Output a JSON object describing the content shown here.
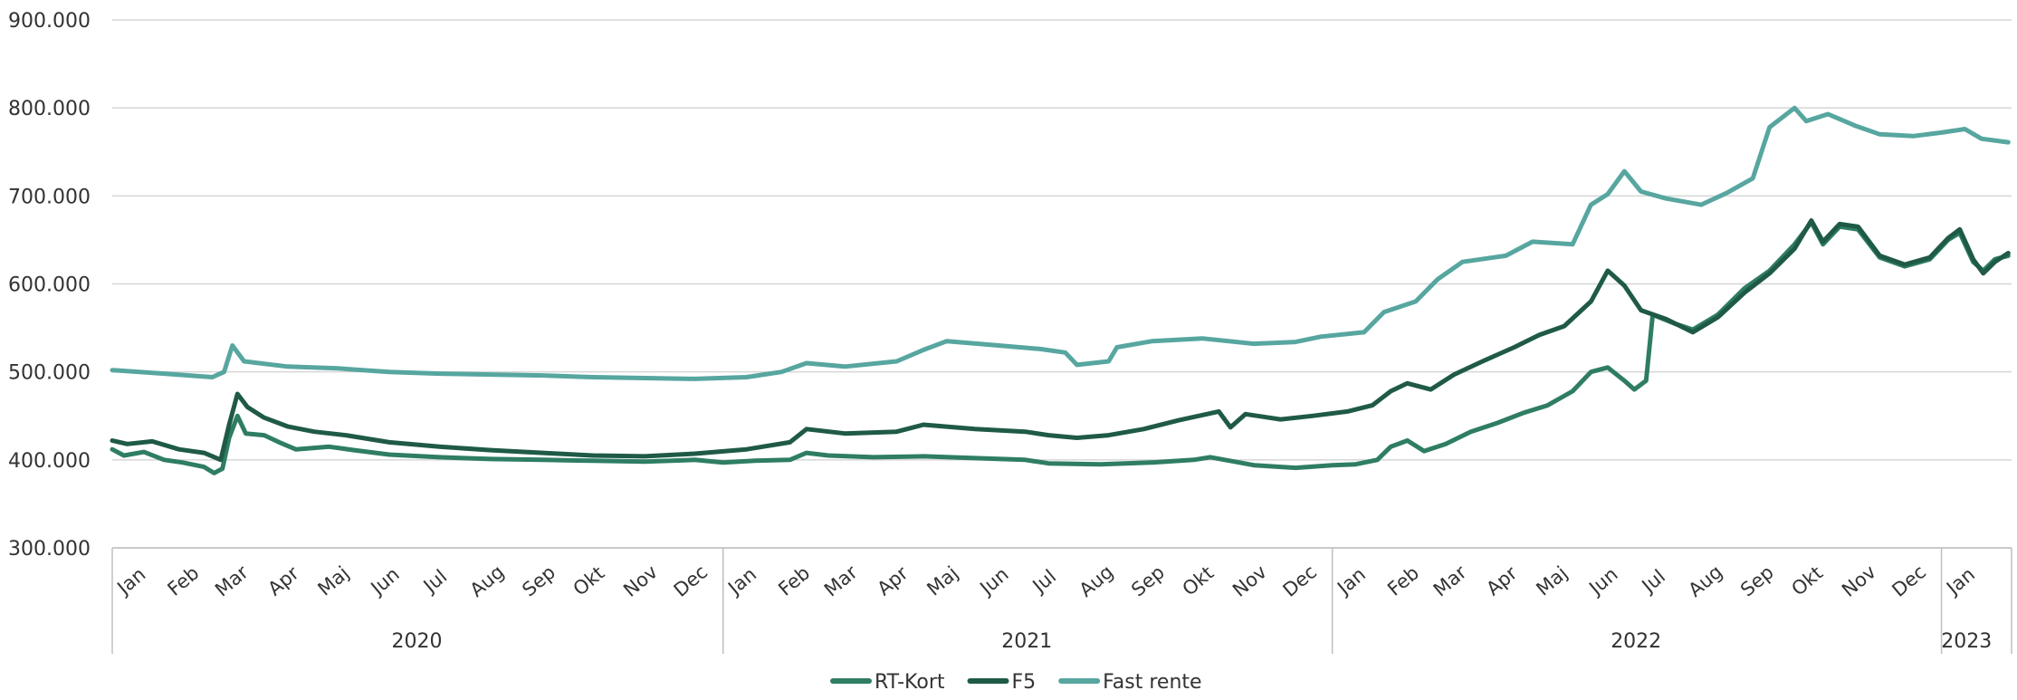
{
  "chart_data": {
    "type": "line",
    "title": "",
    "xlabel": "",
    "ylabel": "",
    "ylim": [
      300000,
      900000
    ],
    "yticks": [
      "300.000",
      "400.000",
      "500.000",
      "600.000",
      "700.000",
      "800.000",
      "900.000"
    ],
    "grid": true,
    "legend_position": "bottom",
    "x_tick_labels": [
      {
        "label": "Jan",
        "date": "2020-01-15"
      },
      {
        "label": "Feb",
        "date": "2020-02-15"
      },
      {
        "label": "Mar",
        "date": "2020-03-15"
      },
      {
        "label": "Apr",
        "date": "2020-04-15"
      },
      {
        "label": "Maj",
        "date": "2020-05-15"
      },
      {
        "label": "Jun",
        "date": "2020-06-15"
      },
      {
        "label": "Jul",
        "date": "2020-07-15"
      },
      {
        "label": "Aug",
        "date": "2020-08-15"
      },
      {
        "label": "Sep",
        "date": "2020-09-15"
      },
      {
        "label": "Okt",
        "date": "2020-10-15"
      },
      {
        "label": "Nov",
        "date": "2020-11-15"
      },
      {
        "label": "Dec",
        "date": "2020-12-15"
      },
      {
        "label": "Jan",
        "date": "2021-01-15"
      },
      {
        "label": "Feb",
        "date": "2021-02-15"
      },
      {
        "label": "Mar",
        "date": "2021-03-15"
      },
      {
        "label": "Apr",
        "date": "2021-04-15"
      },
      {
        "label": "Maj",
        "date": "2021-05-15"
      },
      {
        "label": "Jun",
        "date": "2021-06-15"
      },
      {
        "label": "Jul",
        "date": "2021-07-15"
      },
      {
        "label": "Aug",
        "date": "2021-08-15"
      },
      {
        "label": "Sep",
        "date": "2021-09-15"
      },
      {
        "label": "Okt",
        "date": "2021-10-15"
      },
      {
        "label": "Nov",
        "date": "2021-11-15"
      },
      {
        "label": "Dec",
        "date": "2021-12-15"
      },
      {
        "label": "Jan",
        "date": "2022-01-15"
      },
      {
        "label": "Feb",
        "date": "2022-02-15"
      },
      {
        "label": "Mar",
        "date": "2022-03-15"
      },
      {
        "label": "Apr",
        "date": "2022-04-15"
      },
      {
        "label": "Maj",
        "date": "2022-05-15"
      },
      {
        "label": "Jun",
        "date": "2022-06-15"
      },
      {
        "label": "Jul",
        "date": "2022-07-15"
      },
      {
        "label": "Aug",
        "date": "2022-08-15"
      },
      {
        "label": "Sep",
        "date": "2022-09-15"
      },
      {
        "label": "Okt",
        "date": "2022-10-15"
      },
      {
        "label": "Nov",
        "date": "2022-11-15"
      },
      {
        "label": "Dec",
        "date": "2022-12-15"
      },
      {
        "label": "Jan",
        "date": "2023-01-15"
      }
    ],
    "year_groups": [
      {
        "label": "2020",
        "start": "2020-01-01",
        "end": "2020-12-31"
      },
      {
        "label": "2021",
        "start": "2021-01-01",
        "end": "2021-12-31"
      },
      {
        "label": "2022",
        "start": "2022-01-01",
        "end": "2022-12-31"
      },
      {
        "label": "2023",
        "start": "2023-01-01",
        "end": "2023-01-31"
      }
    ],
    "series": [
      {
        "name": "RT-Kort",
        "color": "#2e7d64",
        "points": [
          [
            "2020-01-01",
            412000
          ],
          [
            "2020-01-08",
            405000
          ],
          [
            "2020-01-20",
            409000
          ],
          [
            "2020-02-01",
            400000
          ],
          [
            "2020-02-12",
            397000
          ],
          [
            "2020-02-25",
            392000
          ],
          [
            "2020-03-02",
            385000
          ],
          [
            "2020-03-07",
            390000
          ],
          [
            "2020-03-11",
            425000
          ],
          [
            "2020-03-16",
            450000
          ],
          [
            "2020-03-21",
            430000
          ],
          [
            "2020-04-01",
            428000
          ],
          [
            "2020-04-10",
            420000
          ],
          [
            "2020-04-20",
            412000
          ],
          [
            "2020-05-10",
            415000
          ],
          [
            "2020-05-25",
            411000
          ],
          [
            "2020-06-15",
            406000
          ],
          [
            "2020-07-15",
            403000
          ],
          [
            "2020-08-15",
            401000
          ],
          [
            "2020-09-15",
            400000
          ],
          [
            "2020-10-15",
            399000
          ],
          [
            "2020-11-15",
            398000
          ],
          [
            "2020-12-15",
            400000
          ],
          [
            "2021-01-01",
            397000
          ],
          [
            "2021-01-20",
            399000
          ],
          [
            "2021-02-10",
            400000
          ],
          [
            "2021-02-20",
            408000
          ],
          [
            "2021-03-05",
            405000
          ],
          [
            "2021-04-01",
            403000
          ],
          [
            "2021-05-01",
            404000
          ],
          [
            "2021-06-01",
            402000
          ],
          [
            "2021-07-01",
            400000
          ],
          [
            "2021-07-15",
            396000
          ],
          [
            "2021-08-15",
            395000
          ],
          [
            "2021-09-15",
            397000
          ],
          [
            "2021-10-10",
            400000
          ],
          [
            "2021-10-20",
            403000
          ],
          [
            "2021-11-15",
            394000
          ],
          [
            "2021-12-10",
            391000
          ],
          [
            "2022-01-01",
            394000
          ],
          [
            "2022-01-15",
            395000
          ],
          [
            "2022-01-28",
            400000
          ],
          [
            "2022-02-05",
            415000
          ],
          [
            "2022-02-15",
            422000
          ],
          [
            "2022-02-25",
            410000
          ],
          [
            "2022-03-10",
            418000
          ],
          [
            "2022-03-25",
            432000
          ],
          [
            "2022-04-10",
            442000
          ],
          [
            "2022-04-25",
            453000
          ],
          [
            "2022-05-10",
            462000
          ],
          [
            "2022-05-25",
            478000
          ],
          [
            "2022-06-05",
            500000
          ],
          [
            "2022-06-15",
            505000
          ],
          [
            "2022-06-25",
            490000
          ],
          [
            "2022-07-01",
            480000
          ],
          [
            "2022-07-08",
            490000
          ],
          [
            "2022-07-12",
            565000
          ],
          [
            "2022-07-25",
            555000
          ],
          [
            "2022-08-05",
            548000
          ],
          [
            "2022-08-20",
            565000
          ],
          [
            "2022-09-05",
            595000
          ],
          [
            "2022-09-20",
            615000
          ],
          [
            "2022-10-05",
            645000
          ],
          [
            "2022-10-15",
            670000
          ],
          [
            "2022-10-22",
            645000
          ],
          [
            "2022-11-01",
            665000
          ],
          [
            "2022-11-12",
            662000
          ],
          [
            "2022-11-25",
            630000
          ],
          [
            "2022-12-10",
            620000
          ],
          [
            "2022-12-25",
            628000
          ],
          [
            "2023-01-05",
            650000
          ],
          [
            "2023-01-12",
            658000
          ],
          [
            "2023-01-20",
            625000
          ],
          [
            "2023-01-26",
            615000
          ],
          [
            "2023-02-02",
            628000
          ],
          [
            "2023-02-10",
            632000
          ]
        ]
      },
      {
        "name": "F5",
        "color": "#1f5a47",
        "points": [
          [
            "2020-01-01",
            422000
          ],
          [
            "2020-01-10",
            418000
          ],
          [
            "2020-01-25",
            421000
          ],
          [
            "2020-02-10",
            412000
          ],
          [
            "2020-02-25",
            408000
          ],
          [
            "2020-03-06",
            400000
          ],
          [
            "2020-03-11",
            440000
          ],
          [
            "2020-03-16",
            475000
          ],
          [
            "2020-03-22",
            460000
          ],
          [
            "2020-04-01",
            448000
          ],
          [
            "2020-04-15",
            438000
          ],
          [
            "2020-05-01",
            432000
          ],
          [
            "2020-05-20",
            428000
          ],
          [
            "2020-06-15",
            420000
          ],
          [
            "2020-07-15",
            415000
          ],
          [
            "2020-08-15",
            411000
          ],
          [
            "2020-09-15",
            408000
          ],
          [
            "2020-10-15",
            405000
          ],
          [
            "2020-11-15",
            404000
          ],
          [
            "2020-12-15",
            407000
          ],
          [
            "2021-01-15",
            412000
          ],
          [
            "2021-02-10",
            420000
          ],
          [
            "2021-02-20",
            435000
          ],
          [
            "2021-03-15",
            430000
          ],
          [
            "2021-04-15",
            432000
          ],
          [
            "2021-05-01",
            440000
          ],
          [
            "2021-06-01",
            435000
          ],
          [
            "2021-07-01",
            432000
          ],
          [
            "2021-07-15",
            428000
          ],
          [
            "2021-08-01",
            425000
          ],
          [
            "2021-08-20",
            428000
          ],
          [
            "2021-09-10",
            435000
          ],
          [
            "2021-10-01",
            445000
          ],
          [
            "2021-10-25",
            455000
          ],
          [
            "2021-11-01",
            437000
          ],
          [
            "2021-11-10",
            452000
          ],
          [
            "2021-12-01",
            446000
          ],
          [
            "2021-12-20",
            450000
          ],
          [
            "2022-01-10",
            455000
          ],
          [
            "2022-01-25",
            462000
          ],
          [
            "2022-02-05",
            478000
          ],
          [
            "2022-02-15",
            487000
          ],
          [
            "2022-03-01",
            480000
          ],
          [
            "2022-03-15",
            497000
          ],
          [
            "2022-04-01",
            512000
          ],
          [
            "2022-04-20",
            528000
          ],
          [
            "2022-05-05",
            542000
          ],
          [
            "2022-05-20",
            552000
          ],
          [
            "2022-06-05",
            580000
          ],
          [
            "2022-06-15",
            615000
          ],
          [
            "2022-06-25",
            598000
          ],
          [
            "2022-07-05",
            570000
          ],
          [
            "2022-07-20",
            560000
          ],
          [
            "2022-08-05",
            545000
          ],
          [
            "2022-08-20",
            562000
          ],
          [
            "2022-09-05",
            590000
          ],
          [
            "2022-09-20",
            612000
          ],
          [
            "2022-10-05",
            640000
          ],
          [
            "2022-10-15",
            672000
          ],
          [
            "2022-10-22",
            648000
          ],
          [
            "2022-11-01",
            668000
          ],
          [
            "2022-11-12",
            665000
          ],
          [
            "2022-11-25",
            632000
          ],
          [
            "2022-12-10",
            622000
          ],
          [
            "2022-12-25",
            630000
          ],
          [
            "2023-01-05",
            652000
          ],
          [
            "2023-01-12",
            662000
          ],
          [
            "2023-01-20",
            628000
          ],
          [
            "2023-01-26",
            612000
          ],
          [
            "2023-02-02",
            625000
          ],
          [
            "2023-02-10",
            635000
          ]
        ]
      },
      {
        "name": "Fast rente",
        "color": "#57a6a0",
        "points": [
          [
            "2020-01-01",
            502000
          ],
          [
            "2020-02-01",
            498000
          ],
          [
            "2020-03-01",
            494000
          ],
          [
            "2020-03-08",
            500000
          ],
          [
            "2020-03-13",
            530000
          ],
          [
            "2020-03-20",
            512000
          ],
          [
            "2020-04-15",
            506000
          ],
          [
            "2020-05-15",
            504000
          ],
          [
            "2020-06-15",
            500000
          ],
          [
            "2020-07-15",
            498000
          ],
          [
            "2020-08-15",
            497000
          ],
          [
            "2020-09-15",
            496000
          ],
          [
            "2020-10-15",
            494000
          ],
          [
            "2020-11-15",
            493000
          ],
          [
            "2020-12-15",
            492000
          ],
          [
            "2021-01-15",
            494000
          ],
          [
            "2021-02-05",
            500000
          ],
          [
            "2021-02-20",
            510000
          ],
          [
            "2021-03-15",
            506000
          ],
          [
            "2021-04-15",
            512000
          ],
          [
            "2021-05-01",
            525000
          ],
          [
            "2021-05-15",
            535000
          ],
          [
            "2021-06-15",
            530000
          ],
          [
            "2021-07-10",
            526000
          ],
          [
            "2021-07-25",
            522000
          ],
          [
            "2021-08-01",
            508000
          ],
          [
            "2021-08-20",
            512000
          ],
          [
            "2021-08-25",
            528000
          ],
          [
            "2021-09-15",
            535000
          ],
          [
            "2021-10-15",
            538000
          ],
          [
            "2021-11-15",
            532000
          ],
          [
            "2021-12-10",
            534000
          ],
          [
            "2021-12-25",
            540000
          ],
          [
            "2022-01-20",
            545000
          ],
          [
            "2022-02-01",
            568000
          ],
          [
            "2022-02-20",
            580000
          ],
          [
            "2022-03-05",
            605000
          ],
          [
            "2022-03-20",
            625000
          ],
          [
            "2022-04-15",
            632000
          ],
          [
            "2022-05-01",
            648000
          ],
          [
            "2022-05-25",
            645000
          ],
          [
            "2022-06-05",
            690000
          ],
          [
            "2022-06-15",
            702000
          ],
          [
            "2022-06-25",
            728000
          ],
          [
            "2022-07-05",
            705000
          ],
          [
            "2022-07-20",
            697000
          ],
          [
            "2022-08-10",
            690000
          ],
          [
            "2022-08-25",
            703000
          ],
          [
            "2022-09-10",
            720000
          ],
          [
            "2022-09-20",
            778000
          ],
          [
            "2022-10-05",
            800000
          ],
          [
            "2022-10-12",
            785000
          ],
          [
            "2022-10-25",
            793000
          ],
          [
            "2022-11-10",
            780000
          ],
          [
            "2022-11-25",
            770000
          ],
          [
            "2022-12-15",
            768000
          ],
          [
            "2023-01-01",
            772000
          ],
          [
            "2023-01-15",
            776000
          ],
          [
            "2023-01-25",
            765000
          ],
          [
            "2023-02-10",
            761000
          ]
        ]
      }
    ]
  }
}
